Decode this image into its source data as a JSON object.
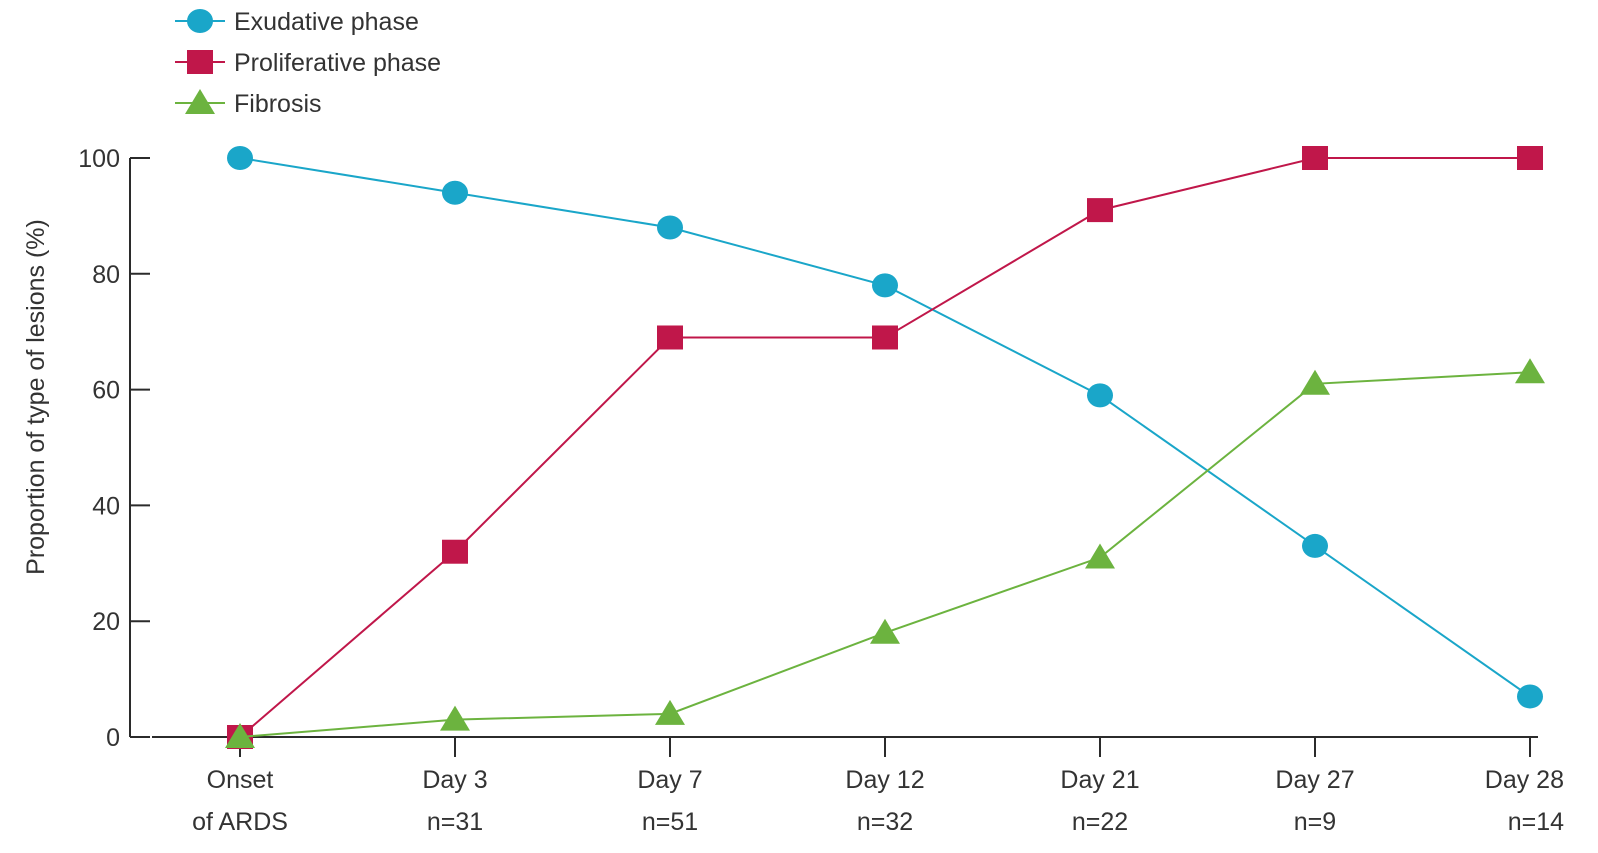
{
  "chart_data": {
    "type": "line",
    "title": "",
    "xlabel": "",
    "ylabel": "Proportion of type of lesions (%)",
    "ylim": [
      0,
      100
    ],
    "yticks": [
      0,
      20,
      40,
      60,
      80,
      100
    ],
    "categories": [
      {
        "label": "Onset",
        "sublabel": "of ARDS"
      },
      {
        "label": "Day 3",
        "sublabel": "n=31"
      },
      {
        "label": "Day 7",
        "sublabel": "n=51"
      },
      {
        "label": "Day 12",
        "sublabel": "n=32"
      },
      {
        "label": "Day 21",
        "sublabel": "n=22"
      },
      {
        "label": "Day 27",
        "sublabel": "n=9"
      },
      {
        "label": "Day 28",
        "sublabel": "n=14"
      }
    ],
    "series": [
      {
        "name": "Exudative phase",
        "marker": "circle",
        "color": "#1aa6c9",
        "values": [
          100,
          94,
          88,
          78,
          59,
          33,
          7
        ]
      },
      {
        "name": "Proliferative phase",
        "marker": "square",
        "color": "#c0174a",
        "values": [
          0,
          32,
          69,
          69,
          91,
          100,
          100
        ]
      },
      {
        "name": "Fibrosis",
        "marker": "triangle",
        "color": "#6cb33f",
        "values": [
          0,
          3,
          4,
          18,
          31,
          61,
          63
        ]
      }
    ],
    "legend_position": "top-left",
    "grid": false
  }
}
